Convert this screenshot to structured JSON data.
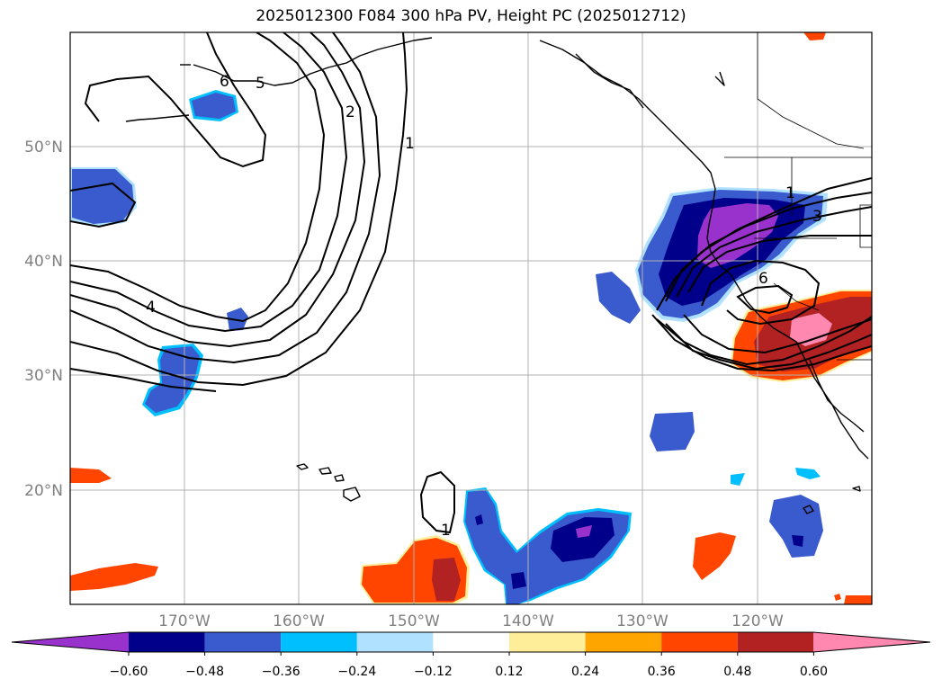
{
  "title": "2025012300 F084 300 hPa PV, Height PC (2025012712)",
  "map": {
    "lat_labels": [
      "50°N",
      "40°N",
      "30°N",
      "20°N"
    ],
    "lon_labels": [
      "170°W",
      "160°W",
      "150°W",
      "140°W",
      "130°W",
      "120°W"
    ],
    "contour_labels": [
      "6",
      "5",
      "2",
      "1",
      "4",
      "1",
      "3",
      "6",
      "1"
    ]
  },
  "colorbar": {
    "colors": [
      "#9932CC",
      "#00008B",
      "#3A5BCD",
      "#00BFFF",
      "#B0E2FF",
      "#FFFFFF",
      "#FFEE99",
      "#FFA500",
      "#FF4500",
      "#B22222",
      "#FF88B0"
    ],
    "tick_labels": [
      "−0.60",
      "−0.48",
      "−0.36",
      "−0.24",
      "−0.12",
      "0.12",
      "0.24",
      "0.36",
      "0.48",
      "0.60"
    ]
  }
}
